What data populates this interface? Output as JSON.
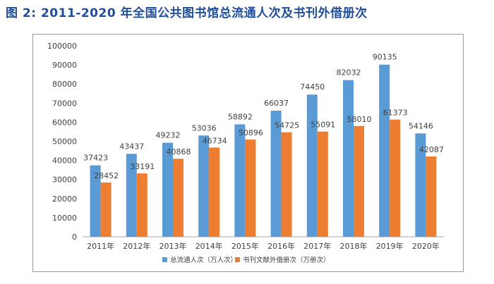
{
  "figure": {
    "title": "图 2: 2011-2020 年全国公共图书馆总流通人次及书刊外借册次"
  },
  "chart_data": {
    "type": "bar",
    "categories": [
      "2011年",
      "2012年",
      "2013年",
      "2014年",
      "2015年",
      "2016年",
      "2017年",
      "2018年",
      "2019年",
      "2020年"
    ],
    "series": [
      {
        "name": "总流通人次（万人次）",
        "color": "#5b9bd5",
        "values": [
          37423,
          43437,
          49232,
          53036,
          58892,
          66037,
          74450,
          82032,
          90135,
          54146
        ]
      },
      {
        "name": "书刊文献外借册次（万册次）",
        "color": "#ed7d31",
        "values": [
          28452,
          33191,
          40868,
          46734,
          50896,
          54725,
          55091,
          58010,
          61373,
          42087
        ]
      }
    ],
    "yticks": [
      "0",
      "10000",
      "20000",
      "30000",
      "40000",
      "50000",
      "60000",
      "70000",
      "80000",
      "90000",
      "100000"
    ],
    "ylim": [
      0,
      100000
    ],
    "grid": false,
    "legend_position": "bottom"
  }
}
